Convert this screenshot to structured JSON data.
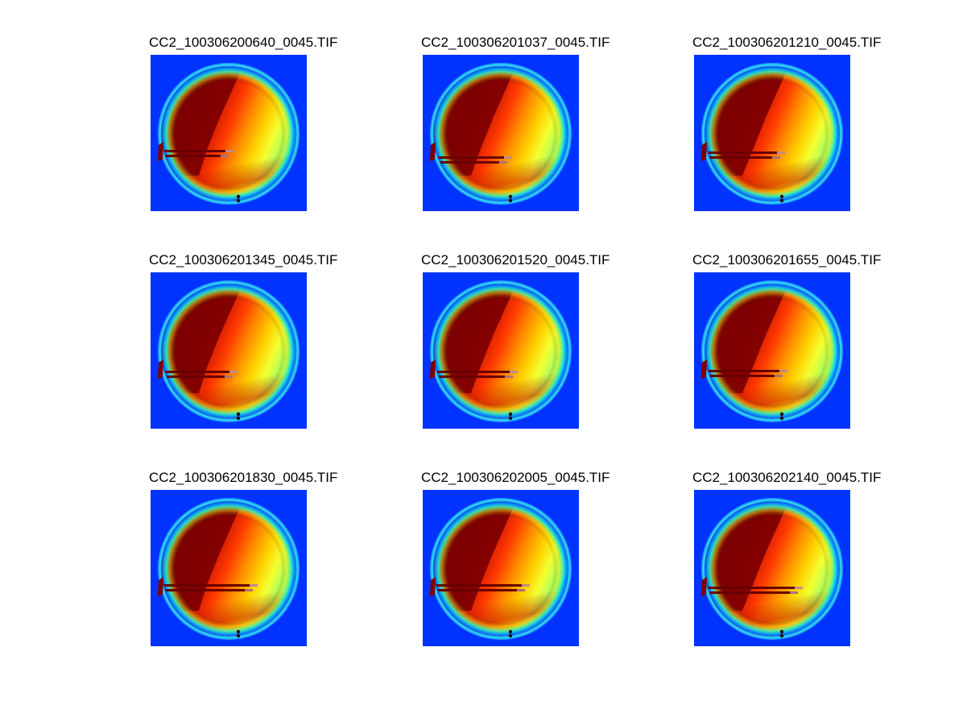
{
  "figure": {
    "panels": [
      {
        "title": "CC2_100306200640_0045.TIF",
        "variant": 0
      },
      {
        "title": "CC2_100306201037_0045.TIF",
        "variant": 1
      },
      {
        "title": "CC2_100306201210_0045.TIF",
        "variant": 2
      },
      {
        "title": "CC2_100306201345_0045.TIF",
        "variant": 3
      },
      {
        "title": "CC2_100306201520_0045.TIF",
        "variant": 4
      },
      {
        "title": "CC2_100306201655_0045.TIF",
        "variant": 5
      },
      {
        "title": "CC2_100306201830_0045.TIF",
        "variant": 6
      },
      {
        "title": "CC2_100306202005_0045.TIF",
        "variant": 7
      },
      {
        "title": "CC2_100306202140_0045.TIF",
        "variant": 8
      }
    ],
    "colormap": "jet",
    "background_color": "#0033ff"
  }
}
